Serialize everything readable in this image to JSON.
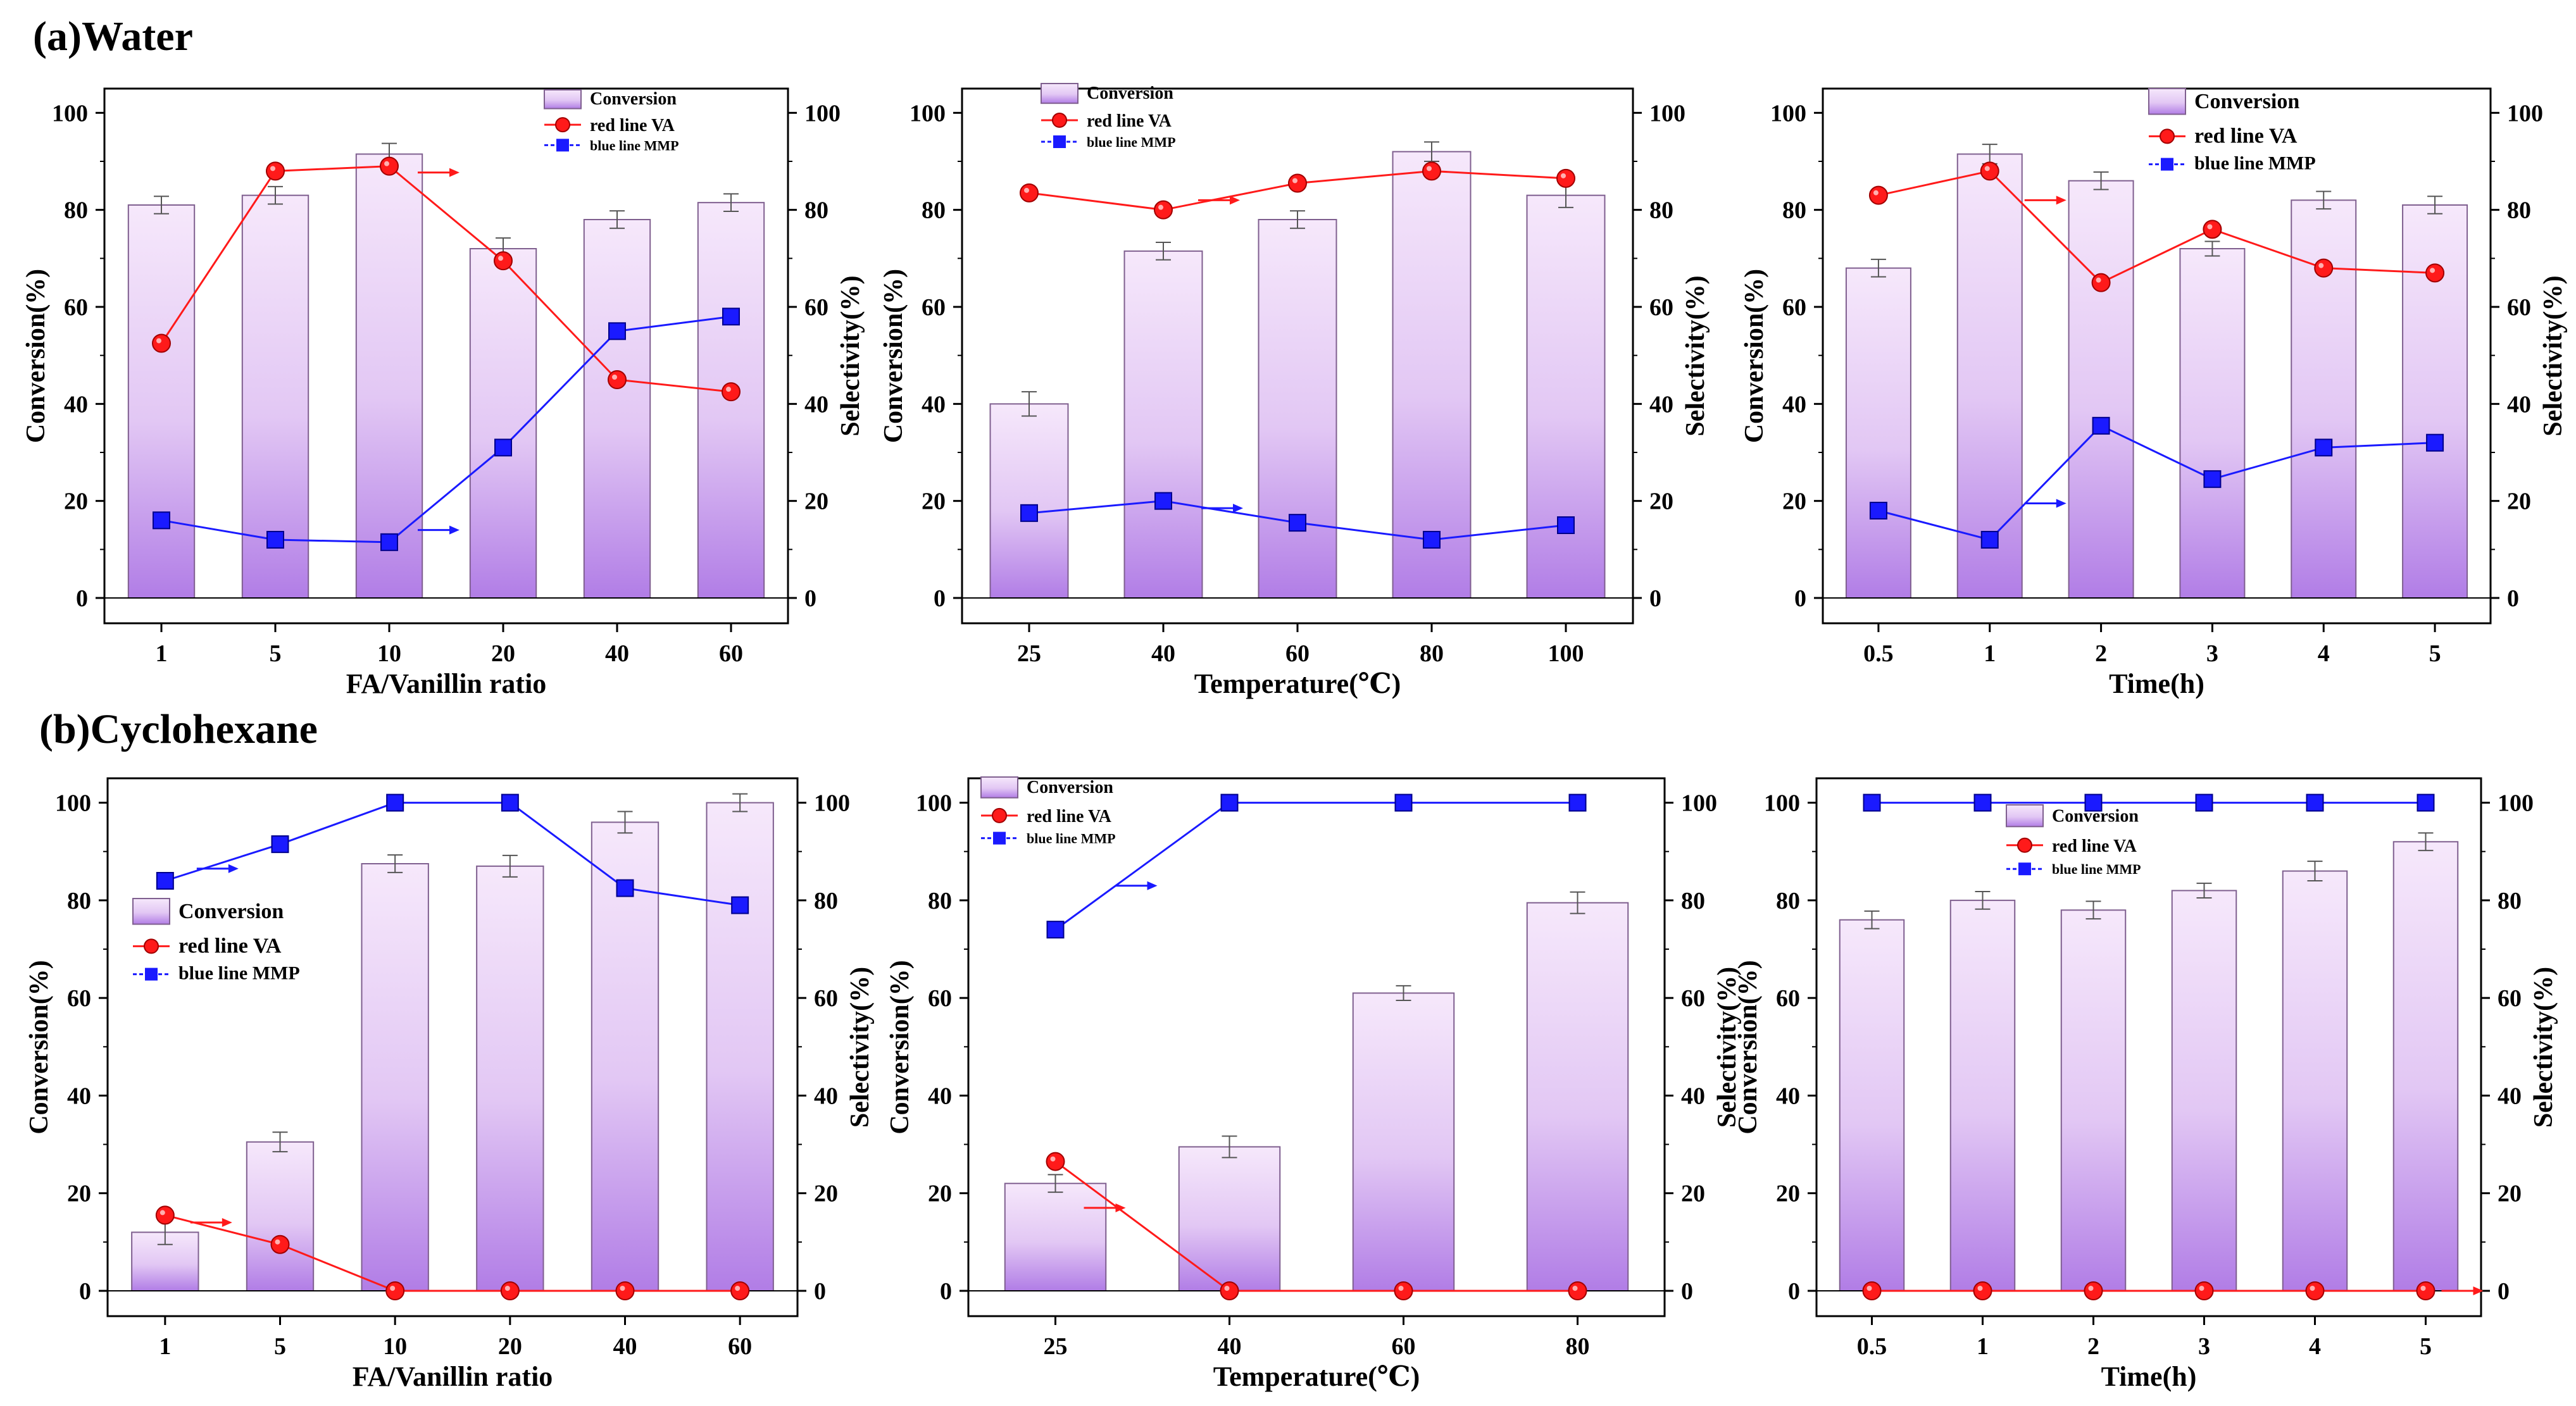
{
  "figure": {
    "section_a_title": "(a)Water",
    "section_b_title": "(b)Cyclohexane"
  },
  "colors": {
    "bar_top": "#f6e8fb",
    "bar_bottom": "#b17de6",
    "bar_stroke": "#7f5f8f",
    "va": "#ff1a1a",
    "mmp": "#1a1aff",
    "axis": "#000000"
  },
  "chart_data": [
    {
      "id": "a1",
      "type": "bar",
      "xlabel": "FA/Vanillin ratio",
      "ylabel": "Conversion(%)",
      "y2label": "Selectivity(%)",
      "categories": [
        "1",
        "5",
        "10",
        "20",
        "40",
        "60"
      ],
      "ylim": [
        0,
        100
      ],
      "y2lim": [
        0,
        100
      ],
      "yticks": [
        "0",
        "20",
        "40",
        "60",
        "80",
        "100"
      ],
      "series": [
        {
          "name": "Conversion",
          "kind": "bar",
          "values": [
            81,
            83,
            91.5,
            72,
            78,
            81.5
          ],
          "errors": [
            1.8,
            1.8,
            2.2,
            2.2,
            1.8,
            1.8
          ]
        },
        {
          "name": "red line VA",
          "kind": "line",
          "axis": "right",
          "values": [
            52.5,
            88,
            89,
            69.5,
            45,
            42.5
          ]
        },
        {
          "name": "blue line MMP",
          "kind": "line",
          "axis": "right",
          "values": [
            16,
            12,
            11.5,
            31,
            55,
            58
          ]
        }
      ],
      "legend_position": "top-right"
    },
    {
      "id": "a2",
      "type": "bar",
      "xlabel": "Temperature(℃)",
      "ylabel": "Conversion(%)",
      "y2label": "Selectivity(%)",
      "categories": [
        "25",
        "40",
        "60",
        "80",
        "100"
      ],
      "ylim": [
        0,
        100
      ],
      "y2lim": [
        0,
        100
      ],
      "yticks": [
        "0",
        "20",
        "40",
        "60",
        "80",
        "100"
      ],
      "series": [
        {
          "name": "Conversion",
          "kind": "bar",
          "values": [
            40,
            71.5,
            78,
            92,
            83
          ],
          "errors": [
            2.5,
            1.8,
            1.8,
            2,
            2.5
          ]
        },
        {
          "name": "red line VA",
          "kind": "line",
          "axis": "right",
          "values": [
            83.5,
            80,
            85.5,
            88,
            86.5
          ]
        },
        {
          "name": "blue line MMP",
          "kind": "line",
          "axis": "right",
          "values": [
            17.5,
            20,
            15.5,
            12,
            15
          ]
        }
      ],
      "legend_position": "top-right"
    },
    {
      "id": "a3",
      "type": "bar",
      "xlabel": "Time(h)",
      "ylabel": "Conversion(%)",
      "y2label": "Selectivity(%)",
      "categories": [
        "0.5",
        "1",
        "2",
        "3",
        "4",
        "5"
      ],
      "ylim": [
        0,
        100
      ],
      "y2lim": [
        0,
        100
      ],
      "yticks": [
        "0",
        "20",
        "40",
        "60",
        "80",
        "100"
      ],
      "series": [
        {
          "name": "Conversion",
          "kind": "bar",
          "values": [
            68,
            91.5,
            86,
            72,
            82,
            81
          ],
          "errors": [
            1.8,
            2,
            1.8,
            1.5,
            1.8,
            1.8
          ]
        },
        {
          "name": "red line VA",
          "kind": "line",
          "axis": "right",
          "values": [
            83,
            88,
            65,
            76,
            68,
            67
          ]
        },
        {
          "name": "blue line MMP",
          "kind": "line",
          "axis": "right",
          "values": [
            18,
            12,
            35.5,
            24.5,
            31,
            32
          ]
        }
      ],
      "legend_position": "top-right"
    },
    {
      "id": "b1",
      "type": "bar",
      "xlabel": "FA/Vanillin ratio",
      "ylabel": "Conversion(%)",
      "y2label": "Selectivity(%)",
      "categories": [
        "1",
        "5",
        "10",
        "20",
        "40",
        "60"
      ],
      "ylim": [
        0,
        100
      ],
      "y2lim": [
        0,
        100
      ],
      "yticks": [
        "0",
        "20",
        "40",
        "60",
        "80",
        "100"
      ],
      "series": [
        {
          "name": "Conversion",
          "kind": "bar",
          "values": [
            12,
            30.5,
            87.5,
            87,
            96,
            100
          ],
          "errors": [
            2.5,
            2,
            1.8,
            2.2,
            2.2,
            1.8
          ]
        },
        {
          "name": "red line VA",
          "kind": "line",
          "axis": "right",
          "values": [
            15.5,
            9.5,
            0,
            0,
            0,
            0
          ]
        },
        {
          "name": "blue line MMP",
          "kind": "line",
          "axis": "right",
          "values": [
            84,
            91.5,
            100,
            100,
            82.5,
            79
          ]
        }
      ],
      "legend_position": "center-left"
    },
    {
      "id": "b2",
      "type": "bar",
      "xlabel": "Temperature(℃)",
      "ylabel": "Conversion(%)",
      "y2label": "Selectivity(%)",
      "categories": [
        "25",
        "40",
        "60",
        "80"
      ],
      "ylim": [
        0,
        100
      ],
      "y2lim": [
        0,
        100
      ],
      "yticks": [
        "0",
        "20",
        "40",
        "60",
        "80",
        "100"
      ],
      "series": [
        {
          "name": "Conversion",
          "kind": "bar",
          "values": [
            22,
            29.5,
            61,
            79.5
          ],
          "errors": [
            1.8,
            2.2,
            1.5,
            2.2
          ]
        },
        {
          "name": "red line VA",
          "kind": "line",
          "axis": "right",
          "values": [
            26.5,
            0,
            0,
            0
          ]
        },
        {
          "name": "blue line MMP",
          "kind": "line",
          "axis": "right",
          "values": [
            74,
            100,
            100,
            100
          ]
        }
      ],
      "legend_position": "top-left"
    },
    {
      "id": "b3",
      "type": "bar",
      "xlabel": "Time(h)",
      "ylabel": "Conversion(%)",
      "y2label": "Selectivity(%)",
      "categories": [
        "0.5",
        "1",
        "2",
        "3",
        "4",
        "5"
      ],
      "ylim": [
        0,
        100
      ],
      "y2lim": [
        0,
        100
      ],
      "yticks": [
        "0",
        "20",
        "40",
        "60",
        "80",
        "100"
      ],
      "series": [
        {
          "name": "Conversion",
          "kind": "bar",
          "values": [
            76,
            80,
            78,
            82,
            86,
            92
          ],
          "errors": [
            1.8,
            1.8,
            1.8,
            1.5,
            2,
            1.8
          ]
        },
        {
          "name": "red line VA",
          "kind": "line",
          "axis": "right",
          "values": [
            0,
            0,
            0,
            0,
            0,
            0
          ]
        },
        {
          "name": "blue line MMP",
          "kind": "line",
          "axis": "right",
          "values": [
            100,
            100,
            100,
            100,
            100,
            100
          ]
        }
      ],
      "legend_position": "top-center"
    }
  ]
}
